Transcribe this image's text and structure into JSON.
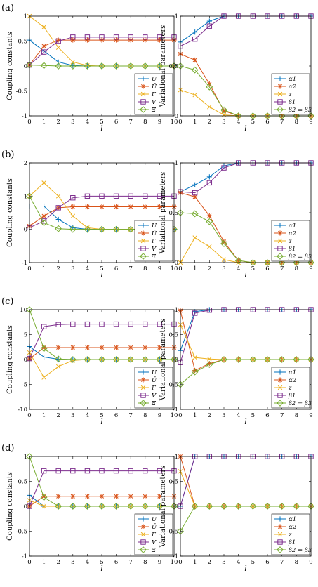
{
  "panel_labels": [
    "(a)",
    "(b)",
    "(c)",
    "(d)"
  ],
  "colors": {
    "U": "#0072BD",
    "Ubar": "#D95319",
    "Gamma": "#EDB120",
    "V": "#7E2F8E",
    "Xi": "#77AC30",
    "alpha1": "#0072BD",
    "alpha2": "#D95319",
    "z": "#EDB120",
    "beta1": "#7E2F8E",
    "beta23": "#77AC30"
  },
  "chart_data": [
    {
      "type": "line",
      "panel": "(a)-left",
      "xlabel": "l",
      "ylabel": "Coupling constants",
      "xlim": [
        0,
        10
      ],
      "ylim": [
        -1,
        1
      ],
      "xticks": [
        "0",
        "1",
        "2",
        "3",
        "4",
        "5",
        "6",
        "7",
        "8",
        "9",
        "10"
      ],
      "yticks": [
        "-1",
        "-0.5",
        "0",
        "0.5",
        "1"
      ],
      "legend_position": "bottom-right",
      "x": [
        0,
        1,
        2,
        3,
        4,
        5,
        6,
        7,
        8,
        9,
        10
      ],
      "series": [
        {
          "name": "U",
          "marker": "plus",
          "color": "#0072BD",
          "values": [
            0.52,
            0.3,
            0.08,
            0.01,
            0,
            0,
            0,
            0,
            0,
            0,
            0
          ]
        },
        {
          "name": "Ū",
          "marker": "star",
          "color": "#D95319",
          "values": [
            0.02,
            0.4,
            0.52,
            0.52,
            0.52,
            0.52,
            0.52,
            0.52,
            0.52,
            0.52,
            0.52
          ]
        },
        {
          "name": "Γ",
          "marker": "x",
          "color": "#EDB120",
          "values": [
            1.0,
            0.78,
            0.37,
            0.08,
            0.01,
            0,
            0,
            0,
            0,
            0,
            0
          ]
        },
        {
          "name": "V",
          "marker": "square",
          "color": "#7E2F8E",
          "values": [
            0.02,
            0.28,
            0.5,
            0.58,
            0.58,
            0.58,
            0.58,
            0.58,
            0.58,
            0.58,
            0.58
          ]
        },
        {
          "name": "Ξ",
          "marker": "diamond",
          "color": "#77AC30",
          "values": [
            0.02,
            0.01,
            0,
            0,
            0,
            0,
            0,
            0,
            0,
            0,
            0
          ]
        }
      ]
    },
    {
      "type": "line",
      "panel": "(a)-right",
      "xlabel": "l",
      "ylabel": "Variational parameters",
      "xlim": [
        0,
        9
      ],
      "ylim": [
        0,
        1
      ],
      "xticks": [
        "0",
        "1",
        "2",
        "3",
        "4",
        "5",
        "6",
        "7",
        "8",
        "9"
      ],
      "yticks": [
        "0",
        "0.5",
        "1"
      ],
      "legend_position": "bottom-right",
      "x": [
        0,
        1,
        2,
        3,
        4,
        5,
        6,
        7,
        8,
        9
      ],
      "series": [
        {
          "name": "α1",
          "marker": "plus",
          "color": "#0072BD",
          "values": [
            0.74,
            0.84,
            0.95,
            1,
            1,
            1,
            1,
            1,
            1,
            1
          ]
        },
        {
          "name": "α2",
          "marker": "star",
          "color": "#D95319",
          "values": [
            0.62,
            0.56,
            0.32,
            0.05,
            0,
            0,
            0,
            0,
            0,
            0
          ]
        },
        {
          "name": "z",
          "marker": "x",
          "color": "#EDB120",
          "values": [
            0.26,
            0.21,
            0.09,
            0.01,
            0,
            0,
            0,
            0,
            0,
            0
          ]
        },
        {
          "name": "β1",
          "marker": "square",
          "color": "#7E2F8E",
          "values": [
            0.7,
            0.77,
            0.9,
            1,
            1,
            1,
            1,
            1,
            1,
            1
          ]
        },
        {
          "name": "β2 = β3",
          "marker": "diamond",
          "color": "#77AC30",
          "values": [
            0.5,
            0.46,
            0.29,
            0.06,
            0,
            0,
            0,
            0,
            0,
            0
          ]
        }
      ]
    },
    {
      "type": "line",
      "panel": "(b)-left",
      "xlabel": "l",
      "ylabel": "Coupling constants",
      "xlim": [
        0,
        10
      ],
      "ylim": [
        -1,
        2
      ],
      "xticks": [
        "0",
        "1",
        "2",
        "3",
        "4",
        "5",
        "6",
        "7",
        "8",
        "9",
        "10"
      ],
      "yticks": [
        "-1",
        "0",
        "1",
        "2"
      ],
      "legend_position": "bottom-right",
      "x": [
        0,
        1,
        2,
        3,
        4,
        5,
        6,
        7,
        8,
        9,
        10
      ],
      "series": [
        {
          "name": "U",
          "marker": "plus",
          "color": "#0072BD",
          "values": [
            0.7,
            0.7,
            0.3,
            0.05,
            0,
            0,
            0,
            0,
            0,
            0,
            0
          ]
        },
        {
          "name": "Ū",
          "marker": "star",
          "color": "#D95319",
          "values": [
            0.1,
            0.4,
            0.65,
            0.68,
            0.68,
            0.68,
            0.68,
            0.68,
            0.68,
            0.68,
            0.68
          ]
        },
        {
          "name": "Γ",
          "marker": "x",
          "color": "#EDB120",
          "values": [
            1.0,
            1.4,
            1.0,
            0.4,
            0.05,
            0,
            0,
            0,
            0,
            0,
            0
          ]
        },
        {
          "name": "V",
          "marker": "square",
          "color": "#7E2F8E",
          "values": [
            0.05,
            0.25,
            0.65,
            0.95,
            1.0,
            1.0,
            1.0,
            1.0,
            1.0,
            1.0,
            1.0
          ]
        },
        {
          "name": "Ξ",
          "marker": "diamond",
          "color": "#77AC30",
          "values": [
            1.0,
            0.2,
            0.02,
            0,
            0,
            0,
            0,
            0,
            0,
            0,
            0
          ]
        }
      ]
    },
    {
      "type": "line",
      "panel": "(b)-right",
      "xlabel": "l",
      "ylabel": "Variational parameters",
      "xlim": [
        0,
        9
      ],
      "ylim": [
        0,
        1
      ],
      "xticks": [
        "0",
        "1",
        "2",
        "3",
        "4",
        "5",
        "6",
        "7",
        "8",
        "9"
      ],
      "yticks": [
        "0",
        "0.5",
        "1"
      ],
      "legend_position": "bottom-right",
      "x": [
        0,
        1,
        2,
        3,
        4,
        5,
        6,
        7,
        8,
        9
      ],
      "series": [
        {
          "name": "α1",
          "marker": "plus",
          "color": "#0072BD",
          "values": [
            0.71,
            0.78,
            0.86,
            0.97,
            1,
            1,
            1,
            1,
            1,
            1
          ]
        },
        {
          "name": "α2",
          "marker": "star",
          "color": "#D95319",
          "values": [
            0.7,
            0.66,
            0.47,
            0.21,
            0.02,
            0,
            0,
            0,
            0,
            0
          ]
        },
        {
          "name": "z",
          "marker": "x",
          "color": "#EDB120",
          "values": [
            0,
            0.25,
            0.16,
            0.03,
            0,
            0,
            0,
            0,
            0,
            0
          ]
        },
        {
          "name": "β1",
          "marker": "square",
          "color": "#7E2F8E",
          "values": [
            0.71,
            0.7,
            0.8,
            0.95,
            1,
            1,
            1,
            1,
            1,
            1
          ]
        },
        {
          "name": "β2 = β3",
          "marker": "diamond",
          "color": "#77AC30",
          "values": [
            0.5,
            0.49,
            0.41,
            0.19,
            0.02,
            0,
            0,
            0,
            0,
            0
          ]
        }
      ]
    },
    {
      "type": "line",
      "panel": "(c)-left",
      "xlabel": "l",
      "ylabel": "Coupling constants",
      "xlim": [
        0,
        10
      ],
      "ylim": [
        -10,
        10
      ],
      "xticks": [
        "0",
        "1",
        "2",
        "3",
        "4",
        "5",
        "6",
        "7",
        "8",
        "9",
        "10"
      ],
      "yticks": [
        "-10",
        "-5",
        "0",
        "5",
        "10"
      ],
      "legend_position": "bottom-right",
      "x": [
        0,
        1,
        2,
        3,
        4,
        5,
        6,
        7,
        8,
        9,
        10
      ],
      "series": [
        {
          "name": "U",
          "marker": "plus",
          "color": "#0072BD",
          "values": [
            2.6,
            0.5,
            0.05,
            0,
            0,
            0,
            0,
            0,
            0,
            0,
            0
          ]
        },
        {
          "name": "Ū",
          "marker": "star",
          "color": "#D95319",
          "values": [
            0.1,
            2.4,
            2.4,
            2.4,
            2.4,
            2.4,
            2.4,
            2.4,
            2.4,
            2.4,
            2.4
          ]
        },
        {
          "name": "Γ",
          "marker": "x",
          "color": "#EDB120",
          "values": [
            1.4,
            -3.6,
            -1.4,
            -0.2,
            0,
            0,
            0,
            0,
            0,
            0,
            0
          ]
        },
        {
          "name": "V",
          "marker": "square",
          "color": "#7E2F8E",
          "values": [
            0.2,
            6.6,
            7.0,
            7.1,
            7.1,
            7.1,
            7.1,
            7.1,
            7.1,
            7.1,
            7.1
          ]
        },
        {
          "name": "Ξ",
          "marker": "diamond",
          "color": "#77AC30",
          "values": [
            10,
            2.2,
            0.1,
            0,
            0,
            0,
            0,
            0,
            0,
            0,
            0
          ]
        }
      ]
    },
    {
      "type": "line",
      "panel": "(c)-right",
      "xlabel": "l",
      "ylabel": "Variational parameters",
      "xlim": [
        0,
        9
      ],
      "ylim": [
        -1,
        1
      ],
      "xticks": [
        "0",
        "1",
        "2",
        "3",
        "4",
        "5",
        "6",
        "7",
        "8",
        "9"
      ],
      "yticks": [
        "-1",
        "-0.5",
        "0",
        "0.5",
        "1"
      ],
      "legend_position": "bottom-right",
      "x": [
        0,
        1,
        2,
        3,
        4,
        5,
        6,
        7,
        8,
        9
      ],
      "series": [
        {
          "name": "α1",
          "marker": "plus",
          "color": "#0072BD",
          "values": [
            0.18,
            0.96,
            1,
            1,
            1,
            1,
            1,
            1,
            1,
            1
          ]
        },
        {
          "name": "α2",
          "marker": "star",
          "color": "#D95319",
          "values": [
            0.98,
            -0.22,
            -0.08,
            0,
            0,
            0,
            0,
            0,
            0,
            0
          ]
        },
        {
          "name": "z",
          "marker": "x",
          "color": "#EDB120",
          "values": [
            0.7,
            0.04,
            0.01,
            0,
            0,
            0,
            0,
            0,
            0,
            0
          ]
        },
        {
          "name": "β1",
          "marker": "square",
          "color": "#7E2F8E",
          "values": [
            -0.06,
            0.93,
            0.99,
            1,
            1,
            1,
            1,
            1,
            1,
            1
          ]
        },
        {
          "name": "β2 = β3",
          "marker": "diamond",
          "color": "#77AC30",
          "values": [
            -0.5,
            -0.25,
            -0.1,
            0,
            0,
            0,
            0,
            0,
            0,
            0
          ]
        }
      ]
    },
    {
      "type": "line",
      "panel": "(d)-left",
      "xlabel": "l",
      "ylabel": "Coupling constants",
      "xlim": [
        0,
        10
      ],
      "ylim": [
        -1,
        1
      ],
      "xticks": [
        "0",
        "1",
        "2",
        "3",
        "4",
        "5",
        "6",
        "7",
        "8",
        "9",
        "10"
      ],
      "yticks": [
        "-1",
        "-0.5",
        "0",
        "0.5",
        "1"
      ],
      "legend_position": "bottom-right",
      "x": [
        0,
        1,
        2,
        3,
        4,
        5,
        6,
        7,
        8,
        9,
        10
      ],
      "series": [
        {
          "name": "U",
          "marker": "plus",
          "color": "#0072BD",
          "values": [
            0.22,
            0,
            0,
            0,
            0,
            0,
            0,
            0,
            0,
            0,
            0
          ]
        },
        {
          "name": "Ū",
          "marker": "star",
          "color": "#D95319",
          "values": [
            0,
            0.2,
            0.2,
            0.2,
            0.2,
            0.2,
            0.2,
            0.2,
            0.2,
            0.2,
            0.2
          ]
        },
        {
          "name": "Γ",
          "marker": "x",
          "color": "#EDB120",
          "values": [
            0.12,
            0,
            0,
            0,
            0,
            0,
            0,
            0,
            0,
            0,
            0
          ]
        },
        {
          "name": "V",
          "marker": "square",
          "color": "#7E2F8E",
          "values": [
            0,
            0.71,
            0.71,
            0.71,
            0.71,
            0.71,
            0.71,
            0.71,
            0.71,
            0.71,
            0.71
          ]
        },
        {
          "name": "Ξ",
          "marker": "diamond",
          "color": "#77AC30",
          "values": [
            1.0,
            0.18,
            0,
            0,
            0,
            0,
            0,
            0,
            0,
            0,
            0
          ]
        }
      ]
    },
    {
      "type": "line",
      "panel": "(d)-right",
      "xlabel": "l",
      "ylabel": "Variational parameters",
      "xlim": [
        0,
        9
      ],
      "ylim": [
        -1,
        1
      ],
      "xticks": [
        "0",
        "1",
        "2",
        "3",
        "4",
        "5",
        "6",
        "7",
        "8",
        "9"
      ],
      "yticks": [
        "-1",
        "-0.5",
        "0",
        "0.5",
        "1"
      ],
      "legend_position": "bottom-right",
      "x": [
        0,
        1,
        2,
        3,
        4,
        5,
        6,
        7,
        8,
        9
      ],
      "series": [
        {
          "name": "α1",
          "marker": "plus",
          "color": "#0072BD",
          "values": [
            0,
            1,
            1,
            1,
            1,
            1,
            1,
            1,
            1,
            1
          ]
        },
        {
          "name": "α2",
          "marker": "star",
          "color": "#D95319",
          "values": [
            1,
            0,
            0,
            0,
            0,
            0,
            0,
            0,
            0,
            0
          ]
        },
        {
          "name": "z",
          "marker": "x",
          "color": "#EDB120",
          "values": [
            0.7,
            0,
            0,
            0,
            0,
            0,
            0,
            0,
            0,
            0
          ]
        },
        {
          "name": "β1",
          "marker": "square",
          "color": "#7E2F8E",
          "values": [
            0,
            1,
            1,
            1,
            1,
            1,
            1,
            1,
            1,
            1
          ]
        },
        {
          "name": "β2 = β3",
          "marker": "diamond",
          "color": "#77AC30",
          "values": [
            -0.5,
            0,
            0,
            0,
            0,
            0,
            0,
            0,
            0,
            0
          ]
        }
      ]
    }
  ]
}
